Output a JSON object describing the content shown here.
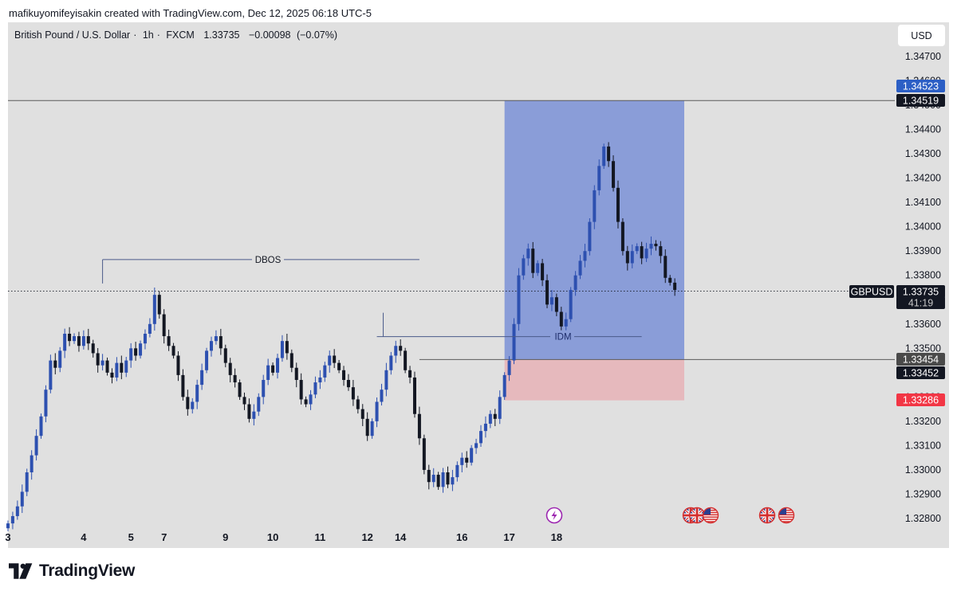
{
  "credit": "mafikuyomifeyisakin created with TradingView.com, Dec 12, 2025 06:18 UTC-5",
  "symbol_bar": {
    "name": "British Pound / U.S. Dollar",
    "interval": "1h",
    "exchange": "FXCM",
    "last": "1.33735",
    "change": "−0.00098",
    "change_pct": "(−0.07%)"
  },
  "currency_button": "USD",
  "footer_brand": "TradingView",
  "colors": {
    "background": "#e0e0e0",
    "bull": "#2d50b0",
    "bear": "#131722",
    "profit_zone": "#8a9dd8",
    "loss_zone": "#e6b9bd",
    "blue_badge": "#2c5fc5",
    "red_badge": "#f23645",
    "dark_badge": "#131722",
    "grey_badge": "#4a4a4a"
  },
  "chart_data": {
    "type": "candlestick",
    "y_range": [
      1.3275,
      1.3478
    ],
    "y_ticks": [
      "1.34700",
      "1.34600",
      "1.34500",
      "1.34400",
      "1.34300",
      "1.34200",
      "1.34100",
      "1.34000",
      "1.33900",
      "1.33800",
      "1.33700",
      "1.33600",
      "1.33500",
      "1.33400",
      "1.33300",
      "1.33200",
      "1.33100",
      "1.33000",
      "1.32900",
      "1.32800"
    ],
    "x_ticks": [
      "3",
      "4",
      "5",
      "7",
      "9",
      "10",
      "11",
      "12",
      "14",
      "16",
      "17",
      "18"
    ],
    "x_range_bars": [
      0,
      142
    ],
    "x_tick_positions": [
      0,
      16,
      26,
      33,
      46,
      56,
      66,
      76,
      83,
      96,
      106,
      116
    ],
    "candles_close": [
      1.3278,
      1.3281,
      1.3285,
      1.3291,
      1.3299,
      1.3306,
      1.3314,
      1.3322,
      1.3333,
      1.3345,
      1.3342,
      1.3349,
      1.3356,
      1.3353,
      1.3355,
      1.3351,
      1.3355,
      1.3352,
      1.3348,
      1.3343,
      1.3345,
      1.334,
      1.3338,
      1.3344,
      1.334,
      1.3345,
      1.335,
      1.3347,
      1.3352,
      1.3356,
      1.336,
      1.3372,
      1.3364,
      1.3355,
      1.3351,
      1.3347,
      1.3339,
      1.333,
      1.3325,
      1.3328,
      1.3335,
      1.3341,
      1.3349,
      1.3353,
      1.3355,
      1.335,
      1.3344,
      1.3339,
      1.3336,
      1.333,
      1.3327,
      1.3321,
      1.3324,
      1.333,
      1.3337,
      1.3343,
      1.334,
      1.3346,
      1.3353,
      1.3348,
      1.3342,
      1.3337,
      1.3329,
      1.3327,
      1.3331,
      1.3336,
      1.3338,
      1.3343,
      1.3347,
      1.3344,
      1.3341,
      1.3337,
      1.3334,
      1.3329,
      1.3325,
      1.3321,
      1.3314,
      1.332,
      1.3328,
      1.3333,
      1.3341,
      1.3347,
      1.3351,
      1.3349,
      1.3341,
      1.3338,
      1.3323,
      1.3313,
      1.33,
      1.3295,
      1.3298,
      1.3293,
      1.3299,
      1.3294,
      1.3297,
      1.3302,
      1.3305,
      1.3303,
      1.3309,
      1.3311,
      1.3316,
      1.3319,
      1.3323,
      1.3321,
      1.333,
      1.3339,
      1.3345,
      1.336,
      1.338,
      1.3387,
      1.3391,
      1.3381,
      1.3385,
      1.3378,
      1.3368,
      1.3371,
      1.3365,
      1.3359,
      1.3362,
      1.3374,
      1.338,
      1.3386,
      1.339,
      1.3402,
      1.3415,
      1.3425,
      1.3433,
      1.3427,
      1.3416,
      1.3402,
      1.339,
      1.3385,
      1.339,
      1.3392,
      1.3387,
      1.3391,
      1.3393,
      1.3392,
      1.3388,
      1.3379,
      1.3377,
      1.3374
    ],
    "annotations": {
      "dbos": {
        "label": "DBOS",
        "price": 1.33865,
        "from_bar": 20,
        "to_bar": 87
      },
      "idm": {
        "label": "IDM",
        "price": 1.33548,
        "from_bar": 78,
        "to_bar": 134
      },
      "upper_line": {
        "price": 1.34519
      },
      "lower_line": {
        "price": 1.33454
      },
      "position": {
        "from_bar": 105,
        "to_bar": 143,
        "top": 1.34519,
        "entry": 1.33454,
        "stop": 1.33286
      }
    },
    "price_badges": {
      "target": "1.34523",
      "upper_line": "1.34519",
      "last": "1.33735",
      "countdown": "41:19",
      "symbol": "GBPUSD",
      "entry_a": "1.33454",
      "entry_b": "1.33452",
      "stop": "1.33286"
    },
    "event_icons": [
      "lightning-icon",
      "uk-flag-icon",
      "uk-flag-icon",
      "us-flag-icon",
      "uk-flag-icon",
      "us-flag-icon"
    ]
  }
}
